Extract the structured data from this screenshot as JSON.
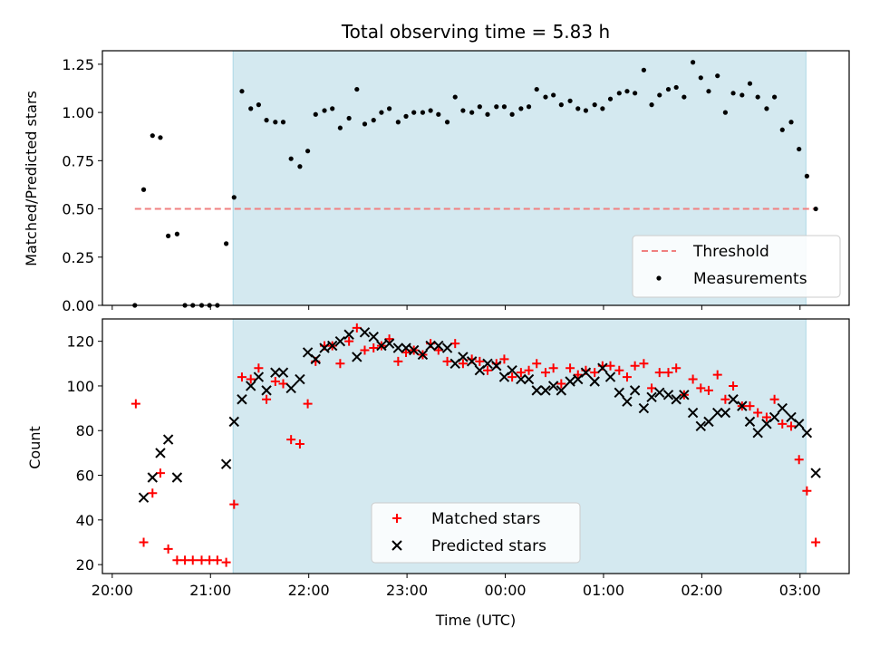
{
  "chart_data": [
    {
      "type": "scatter",
      "title": "Total observing time = 5.83 h",
      "ylabel": "Matched/Predicted stars",
      "xlabel": "",
      "ylim": [
        0,
        1.32
      ],
      "yticks": [
        0.0,
        0.25,
        0.5,
        0.75,
        1.0,
        1.25
      ],
      "ytick_labels": [
        "0.00",
        "0.25",
        "0.50",
        "0.75",
        "1.00",
        "1.25"
      ],
      "x_unit": "hours since 20:00 UTC",
      "xlim": [
        -0.1,
        7.5
      ],
      "shaded_span": [
        1.23,
        7.06
      ],
      "shade_color": "#d4e9f0",
      "threshold": {
        "name": "Threshold",
        "value": 0.5,
        "x_range": [
          0.23,
          7.16
        ],
        "color": "#f08080"
      },
      "series": [
        {
          "name": "Measurements",
          "color": "#000000",
          "points": [
            [
              0.23,
              0.0
            ],
            [
              0.32,
              0.6
            ],
            [
              0.41,
              0.88
            ],
            [
              0.49,
              0.87
            ],
            [
              0.57,
              0.36
            ],
            [
              0.66,
              0.37
            ],
            [
              0.74,
              0.0
            ],
            [
              0.82,
              0.0
            ],
            [
              0.91,
              0.0
            ],
            [
              0.99,
              0.0
            ],
            [
              1.07,
              0.0
            ],
            [
              1.16,
              0.32
            ],
            [
              1.24,
              0.56
            ],
            [
              1.32,
              1.11
            ],
            [
              1.41,
              1.02
            ],
            [
              1.49,
              1.04
            ],
            [
              1.57,
              0.96
            ],
            [
              1.66,
              0.95
            ],
            [
              1.74,
              0.95
            ],
            [
              1.82,
              0.76
            ],
            [
              1.91,
              0.72
            ],
            [
              1.99,
              0.8
            ],
            [
              2.07,
              0.99
            ],
            [
              2.16,
              1.01
            ],
            [
              2.24,
              1.02
            ],
            [
              2.32,
              0.92
            ],
            [
              2.41,
              0.97
            ],
            [
              2.49,
              1.12
            ],
            [
              2.57,
              0.94
            ],
            [
              2.66,
              0.96
            ],
            [
              2.74,
              1.0
            ],
            [
              2.82,
              1.02
            ],
            [
              2.91,
              0.95
            ],
            [
              2.99,
              0.98
            ],
            [
              3.07,
              1.0
            ],
            [
              3.16,
              1.0
            ],
            [
              3.24,
              1.01
            ],
            [
              3.32,
              0.99
            ],
            [
              3.41,
              0.95
            ],
            [
              3.49,
              1.08
            ],
            [
              3.57,
              1.01
            ],
            [
              3.66,
              1.0
            ],
            [
              3.74,
              1.03
            ],
            [
              3.82,
              0.99
            ],
            [
              3.91,
              1.03
            ],
            [
              3.99,
              1.03
            ],
            [
              4.07,
              0.99
            ],
            [
              4.16,
              1.02
            ],
            [
              4.24,
              1.03
            ],
            [
              4.32,
              1.12
            ],
            [
              4.41,
              1.08
            ],
            [
              4.49,
              1.09
            ],
            [
              4.57,
              1.04
            ],
            [
              4.66,
              1.06
            ],
            [
              4.74,
              1.02
            ],
            [
              4.82,
              1.01
            ],
            [
              4.91,
              1.04
            ],
            [
              4.99,
              1.02
            ],
            [
              5.07,
              1.07
            ],
            [
              5.16,
              1.1
            ],
            [
              5.24,
              1.11
            ],
            [
              5.32,
              1.1
            ],
            [
              5.41,
              1.22
            ],
            [
              5.49,
              1.04
            ],
            [
              5.57,
              1.09
            ],
            [
              5.66,
              1.12
            ],
            [
              5.74,
              1.13
            ],
            [
              5.82,
              1.08
            ],
            [
              5.91,
              1.26
            ],
            [
              5.99,
              1.18
            ],
            [
              6.07,
              1.11
            ],
            [
              6.16,
              1.19
            ],
            [
              6.24,
              1.0
            ],
            [
              6.32,
              1.1
            ],
            [
              6.41,
              1.09
            ],
            [
              6.49,
              1.15
            ],
            [
              6.57,
              1.08
            ],
            [
              6.66,
              1.02
            ],
            [
              6.74,
              1.08
            ],
            [
              6.82,
              0.91
            ],
            [
              6.91,
              0.95
            ],
            [
              6.99,
              0.81
            ],
            [
              7.07,
              0.67
            ],
            [
              7.16,
              0.5
            ]
          ]
        }
      ],
      "legend": {
        "position": "lower right",
        "entries": [
          "Threshold",
          "Measurements"
        ]
      }
    },
    {
      "type": "scatter",
      "title": "",
      "ylabel": "Count",
      "xlabel": "Time (UTC)",
      "ylim": [
        16,
        130
      ],
      "yticks": [
        20,
        40,
        60,
        80,
        100,
        120
      ],
      "ytick_labels": [
        "20",
        "40",
        "60",
        "80",
        "100",
        "120"
      ],
      "x_unit": "hours since 20:00 UTC",
      "xlim": [
        -0.1,
        7.5
      ],
      "xticks": [
        0,
        1,
        2,
        3,
        4,
        5,
        6,
        7
      ],
      "xtick_labels": [
        "20:00",
        "21:00",
        "22:00",
        "23:00",
        "00:00",
        "01:00",
        "02:00",
        "03:00"
      ],
      "shaded_span": [
        1.23,
        7.06
      ],
      "shade_color": "#d4e9f0",
      "series": [
        {
          "name": "Matched stars",
          "marker": "+",
          "color": "#ff0000",
          "points": [
            [
              0.24,
              92
            ],
            [
              0.32,
              30
            ],
            [
              0.41,
              52
            ],
            [
              0.49,
              61
            ],
            [
              0.57,
              27
            ],
            [
              0.66,
              22
            ],
            [
              0.74,
              22
            ],
            [
              0.82,
              22
            ],
            [
              0.91,
              22
            ],
            [
              0.99,
              22
            ],
            [
              1.07,
              22
            ],
            [
              1.16,
              21
            ],
            [
              1.24,
              47
            ],
            [
              1.32,
              104
            ],
            [
              1.41,
              103
            ],
            [
              1.49,
              108
            ],
            [
              1.57,
              94
            ],
            [
              1.66,
              102
            ],
            [
              1.74,
              101
            ],
            [
              1.82,
              76
            ],
            [
              1.91,
              74
            ],
            [
              1.99,
              92
            ],
            [
              2.07,
              111
            ],
            [
              2.16,
              118
            ],
            [
              2.24,
              118
            ],
            [
              2.32,
              110
            ],
            [
              2.41,
              120
            ],
            [
              2.49,
              126
            ],
            [
              2.57,
              116
            ],
            [
              2.66,
              117
            ],
            [
              2.74,
              118
            ],
            [
              2.82,
              121
            ],
            [
              2.91,
              111
            ],
            [
              2.99,
              115
            ],
            [
              3.07,
              116
            ],
            [
              3.16,
              114
            ],
            [
              3.24,
              119
            ],
            [
              3.32,
              116
            ],
            [
              3.41,
              111
            ],
            [
              3.49,
              119
            ],
            [
              3.57,
              110
            ],
            [
              3.66,
              112
            ],
            [
              3.74,
              111
            ],
            [
              3.82,
              107
            ],
            [
              3.91,
              110
            ],
            [
              3.99,
              112
            ],
            [
              4.07,
              104
            ],
            [
              4.16,
              106
            ],
            [
              4.24,
              107
            ],
            [
              4.32,
              110
            ],
            [
              4.41,
              106
            ],
            [
              4.49,
              108
            ],
            [
              4.57,
              101
            ],
            [
              4.66,
              108
            ],
            [
              4.74,
              105
            ],
            [
              4.82,
              107
            ],
            [
              4.91,
              106
            ],
            [
              4.99,
              109
            ],
            [
              5.07,
              109
            ],
            [
              5.16,
              107
            ],
            [
              5.24,
              104
            ],
            [
              5.32,
              109
            ],
            [
              5.41,
              110
            ],
            [
              5.49,
              99
            ],
            [
              5.57,
              106
            ],
            [
              5.66,
              106
            ],
            [
              5.74,
              108
            ],
            [
              5.82,
              96
            ],
            [
              5.91,
              103
            ],
            [
              5.99,
              99
            ],
            [
              6.07,
              98
            ],
            [
              6.16,
              105
            ],
            [
              6.24,
              94
            ],
            [
              6.32,
              100
            ],
            [
              6.41,
              91
            ],
            [
              6.49,
              91
            ],
            [
              6.57,
              88
            ],
            [
              6.66,
              86
            ],
            [
              6.74,
              94
            ],
            [
              6.82,
              83
            ],
            [
              6.91,
              82
            ],
            [
              6.99,
              67
            ],
            [
              7.07,
              53
            ],
            [
              7.16,
              30
            ]
          ]
        },
        {
          "name": "Predicted stars",
          "marker": "x",
          "color": "#000000",
          "points": [
            [
              0.32,
              50
            ],
            [
              0.41,
              59
            ],
            [
              0.49,
              70
            ],
            [
              0.57,
              76
            ],
            [
              0.66,
              59
            ],
            [
              1.16,
              65
            ],
            [
              1.24,
              84
            ],
            [
              1.32,
              94
            ],
            [
              1.41,
              100
            ],
            [
              1.49,
              104
            ],
            [
              1.57,
              98
            ],
            [
              1.66,
              106
            ],
            [
              1.74,
              106
            ],
            [
              1.82,
              99
            ],
            [
              1.91,
              103
            ],
            [
              1.99,
              115
            ],
            [
              2.07,
              112
            ],
            [
              2.16,
              117
            ],
            [
              2.24,
              118
            ],
            [
              2.32,
              120
            ],
            [
              2.41,
              123
            ],
            [
              2.49,
              113
            ],
            [
              2.57,
              124
            ],
            [
              2.66,
              122
            ],
            [
              2.74,
              118
            ],
            [
              2.82,
              119
            ],
            [
              2.91,
              117
            ],
            [
              2.99,
              117
            ],
            [
              3.07,
              116
            ],
            [
              3.16,
              114
            ],
            [
              3.24,
              118
            ],
            [
              3.32,
              118
            ],
            [
              3.41,
              117
            ],
            [
              3.49,
              110
            ],
            [
              3.57,
              113
            ],
            [
              3.66,
              111
            ],
            [
              3.74,
              107
            ],
            [
              3.82,
              110
            ],
            [
              3.91,
              109
            ],
            [
              3.99,
              104
            ],
            [
              4.07,
              107
            ],
            [
              4.16,
              103
            ],
            [
              4.24,
              103
            ],
            [
              4.32,
              98
            ],
            [
              4.41,
              98
            ],
            [
              4.49,
              100
            ],
            [
              4.57,
              98
            ],
            [
              4.66,
              102
            ],
            [
              4.74,
              103
            ],
            [
              4.82,
              106
            ],
            [
              4.91,
              102
            ],
            [
              4.99,
              108
            ],
            [
              5.07,
              104
            ],
            [
              5.16,
              97
            ],
            [
              5.24,
              93
            ],
            [
              5.32,
              98
            ],
            [
              5.41,
              90
            ],
            [
              5.49,
              95
            ],
            [
              5.57,
              97
            ],
            [
              5.66,
              96
            ],
            [
              5.74,
              94
            ],
            [
              5.82,
              96
            ],
            [
              5.91,
              88
            ],
            [
              5.99,
              82
            ],
            [
              6.07,
              84
            ],
            [
              6.16,
              88
            ],
            [
              6.24,
              88
            ],
            [
              6.32,
              94
            ],
            [
              6.41,
              91
            ],
            [
              6.49,
              84
            ],
            [
              6.57,
              79
            ],
            [
              6.66,
              83
            ],
            [
              6.74,
              86
            ],
            [
              6.82,
              90
            ],
            [
              6.91,
              86
            ],
            [
              6.99,
              83
            ],
            [
              7.07,
              79
            ],
            [
              7.16,
              61
            ]
          ]
        }
      ],
      "legend": {
        "position": "lower center",
        "entries": [
          "Matched stars",
          "Predicted stars"
        ]
      }
    }
  ]
}
